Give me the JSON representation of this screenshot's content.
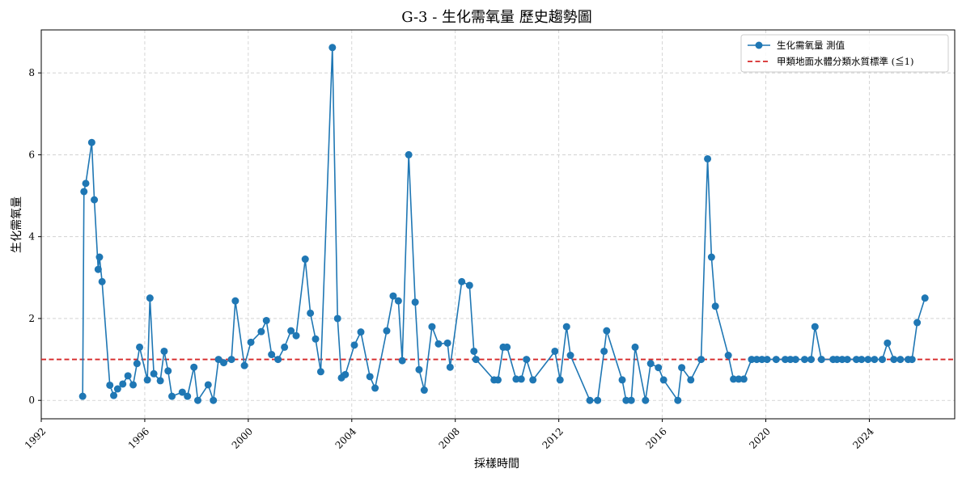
{
  "chart_data": {
    "type": "line",
    "title": "G-3 - 生化需氧量 歷史趨勢圖",
    "xlabel": "採樣時間",
    "ylabel": "生化需氧量",
    "x_ticks": [
      "1992",
      "1996",
      "2000",
      "2004",
      "2008",
      "2012",
      "2016",
      "2020",
      "2024"
    ],
    "y_ticks": [
      "0",
      "2",
      "4",
      "6",
      "8"
    ],
    "xlim": [
      1992.0,
      2027.3
    ],
    "ylim": [
      -0.45,
      9.05
    ],
    "grid": true,
    "legend_position": "top-right",
    "colors": {
      "series": "#1f77b4",
      "standard": "#d62728",
      "grid": "#cccccc"
    },
    "series": [
      {
        "name": "生化需氧量 測值",
        "style": "line-with-circle-markers",
        "points": [
          [
            1993.6,
            0.1
          ],
          [
            1993.65,
            5.1
          ],
          [
            1993.72,
            5.3
          ],
          [
            1993.95,
            6.3
          ],
          [
            1994.05,
            4.9
          ],
          [
            1994.2,
            3.2
          ],
          [
            1994.25,
            3.5
          ],
          [
            1994.35,
            2.9
          ],
          [
            1994.65,
            0.37
          ],
          [
            1994.8,
            0.12
          ],
          [
            1994.95,
            0.28
          ],
          [
            1995.15,
            0.4
          ],
          [
            1995.35,
            0.6
          ],
          [
            1995.55,
            0.38
          ],
          [
            1995.7,
            0.9
          ],
          [
            1995.8,
            1.3
          ],
          [
            1996.1,
            0.5
          ],
          [
            1996.2,
            2.5
          ],
          [
            1996.35,
            0.65
          ],
          [
            1996.6,
            0.48
          ],
          [
            1996.75,
            1.2
          ],
          [
            1996.9,
            0.72
          ],
          [
            1997.05,
            0.1
          ],
          [
            1997.45,
            0.2
          ],
          [
            1997.65,
            0.1
          ],
          [
            1997.9,
            0.81
          ],
          [
            1998.05,
            0.0
          ],
          [
            1998.45,
            0.38
          ],
          [
            1998.65,
            0.0
          ],
          [
            1998.85,
            1.0
          ],
          [
            1999.05,
            0.92
          ],
          [
            1999.35,
            1.0
          ],
          [
            1999.5,
            2.43
          ],
          [
            1999.85,
            0.85
          ],
          [
            2000.1,
            1.42
          ],
          [
            2000.5,
            1.68
          ],
          [
            2000.7,
            1.95
          ],
          [
            2000.9,
            1.12
          ],
          [
            2001.15,
            1.0
          ],
          [
            2001.4,
            1.3
          ],
          [
            2001.65,
            1.7
          ],
          [
            2001.85,
            1.58
          ],
          [
            2002.2,
            3.45
          ],
          [
            2002.4,
            2.13
          ],
          [
            2002.6,
            1.5
          ],
          [
            2002.8,
            0.7
          ],
          [
            2003.25,
            8.62
          ],
          [
            2003.45,
            2.0
          ],
          [
            2003.6,
            0.55
          ],
          [
            2003.75,
            0.63
          ],
          [
            2004.1,
            1.35
          ],
          [
            2004.35,
            1.67
          ],
          [
            2004.7,
            0.58
          ],
          [
            2004.9,
            0.3
          ],
          [
            2005.35,
            1.7
          ],
          [
            2005.6,
            2.55
          ],
          [
            2005.8,
            2.43
          ],
          [
            2005.95,
            0.97
          ],
          [
            2006.2,
            6.0
          ],
          [
            2006.45,
            2.4
          ],
          [
            2006.6,
            0.75
          ],
          [
            2006.8,
            0.25
          ],
          [
            2007.1,
            1.8
          ],
          [
            2007.35,
            1.38
          ],
          [
            2007.7,
            1.4
          ],
          [
            2007.8,
            0.81
          ],
          [
            2008.25,
            2.9
          ],
          [
            2008.55,
            2.81
          ],
          [
            2008.72,
            1.2
          ],
          [
            2008.8,
            1.0
          ],
          [
            2009.5,
            0.5
          ],
          [
            2009.65,
            0.5
          ],
          [
            2009.85,
            1.3
          ],
          [
            2010.0,
            1.3
          ],
          [
            2010.35,
            0.52
          ],
          [
            2010.55,
            0.52
          ],
          [
            2010.75,
            1.0
          ],
          [
            2011.0,
            0.5
          ],
          [
            2011.85,
            1.2
          ],
          [
            2012.05,
            0.5
          ],
          [
            2012.3,
            1.8
          ],
          [
            2012.45,
            1.1
          ],
          [
            2013.2,
            0.0
          ],
          [
            2013.5,
            0.0
          ],
          [
            2013.75,
            1.2
          ],
          [
            2013.85,
            1.7
          ],
          [
            2014.45,
            0.5
          ],
          [
            2014.6,
            0.0
          ],
          [
            2014.8,
            0.0
          ],
          [
            2014.95,
            1.3
          ],
          [
            2015.35,
            0.0
          ],
          [
            2015.55,
            0.9
          ],
          [
            2015.85,
            0.8
          ],
          [
            2016.05,
            0.5
          ],
          [
            2016.6,
            0.0
          ],
          [
            2016.75,
            0.8
          ],
          [
            2017.1,
            0.5
          ],
          [
            2017.5,
            1.0
          ],
          [
            2017.75,
            5.9
          ],
          [
            2017.9,
            3.5
          ],
          [
            2018.05,
            2.3
          ],
          [
            2018.55,
            1.1
          ],
          [
            2018.75,
            0.52
          ],
          [
            2018.95,
            0.52
          ],
          [
            2019.15,
            0.52
          ],
          [
            2019.45,
            1.0
          ],
          [
            2019.65,
            1.0
          ],
          [
            2019.85,
            1.0
          ],
          [
            2020.05,
            1.0
          ],
          [
            2020.4,
            1.0
          ],
          [
            2020.75,
            1.0
          ],
          [
            2020.95,
            1.0
          ],
          [
            2021.15,
            1.0
          ],
          [
            2021.5,
            1.0
          ],
          [
            2021.75,
            1.0
          ],
          [
            2021.9,
            1.8
          ],
          [
            2022.15,
            1.0
          ],
          [
            2022.6,
            1.0
          ],
          [
            2022.75,
            1.0
          ],
          [
            2022.95,
            1.0
          ],
          [
            2023.15,
            1.0
          ],
          [
            2023.5,
            1.0
          ],
          [
            2023.7,
            1.0
          ],
          [
            2023.95,
            1.0
          ],
          [
            2024.2,
            1.0
          ],
          [
            2024.5,
            1.0
          ],
          [
            2024.7,
            1.4
          ],
          [
            2024.95,
            1.0
          ],
          [
            2025.2,
            1.0
          ],
          [
            2025.5,
            1.0
          ],
          [
            2025.65,
            1.0
          ],
          [
            2025.85,
            1.9
          ],
          [
            2026.15,
            2.5
          ]
        ]
      },
      {
        "name": "甲類地面水體分類水質標準 (≦1)",
        "style": "dashed-horizontal-line",
        "value": 1
      }
    ]
  }
}
